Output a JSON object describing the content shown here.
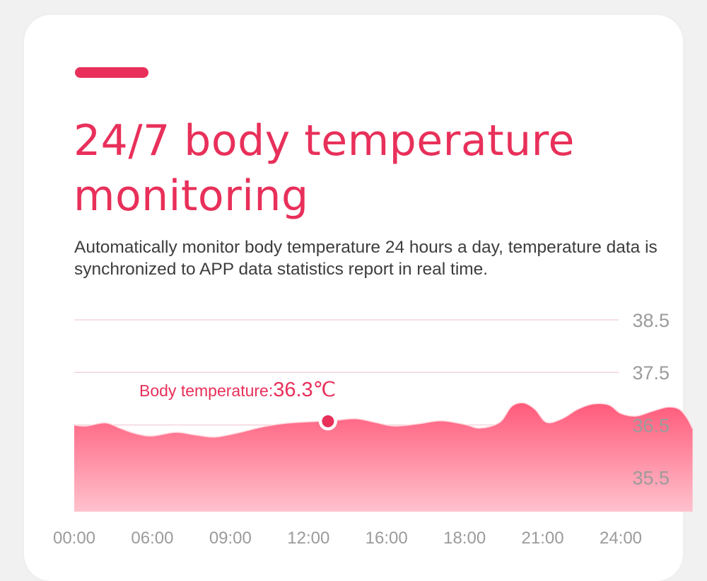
{
  "colors": {
    "background": "#f1f1f1",
    "card": "#ffffff",
    "accent": "#e8305a",
    "gridline": "#f2d5da",
    "axis_text": "#9b9b9b",
    "area_top": "#ff5a7a",
    "area_bottom": "#ffc2cd"
  },
  "header": {
    "title": "24/7 body temperature monitoring",
    "description": "Automatically monitor body temperature 24 hours a day, temperature data is synchronized to APP data statistics report in real time."
  },
  "chart_data": {
    "type": "area",
    "x": [
      "00:00",
      "06:00",
      "09:00",
      "12:00",
      "16:00",
      "18:00",
      "21:00",
      "24:00"
    ],
    "y_ticks": [
      35.5,
      36.5,
      37.5,
      38.5
    ],
    "ylim": [
      34.85,
      38.5
    ],
    "y_axis_position": "right",
    "grid": true,
    "series": [
      {
        "values": [
          [
            0.0,
            36.5
          ],
          [
            0.15,
            36.48
          ],
          [
            0.4,
            36.54
          ],
          [
            0.6,
            36.43
          ],
          [
            0.8,
            36.33
          ],
          [
            1.0,
            36.29
          ],
          [
            1.3,
            36.36
          ],
          [
            1.55,
            36.31
          ],
          [
            1.8,
            36.27
          ],
          [
            2.1,
            36.35
          ],
          [
            2.4,
            36.46
          ],
          [
            2.7,
            36.53
          ],
          [
            3.0,
            36.56
          ],
          [
            3.3,
            36.58
          ],
          [
            3.6,
            36.62
          ],
          [
            3.85,
            36.55
          ],
          [
            4.1,
            36.48
          ],
          [
            4.4,
            36.52
          ],
          [
            4.7,
            36.58
          ],
          [
            5.0,
            36.51
          ],
          [
            5.2,
            36.44
          ],
          [
            5.45,
            36.55
          ],
          [
            5.6,
            36.85
          ],
          [
            5.75,
            36.92
          ],
          [
            5.9,
            36.8
          ],
          [
            6.05,
            36.55
          ],
          [
            6.25,
            36.62
          ],
          [
            6.45,
            36.8
          ],
          [
            6.65,
            36.9
          ],
          [
            6.85,
            36.88
          ],
          [
            7.0,
            36.72
          ],
          [
            7.2,
            36.67
          ],
          [
            7.4,
            36.76
          ],
          [
            7.6,
            36.84
          ],
          [
            7.75,
            36.8
          ],
          [
            7.85,
            36.63
          ],
          [
            7.92,
            36.43
          ]
        ]
      }
    ],
    "annotation": {
      "label": "Body temperature:",
      "value": "36.3℃",
      "x": 3.25,
      "y": 36.57
    }
  }
}
